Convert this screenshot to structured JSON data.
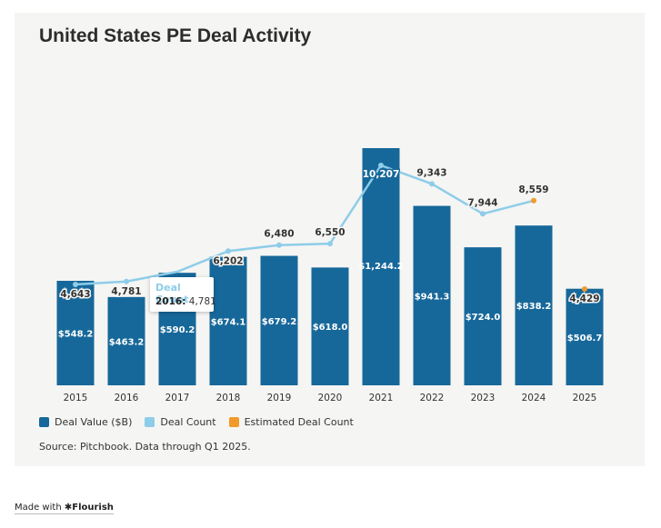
{
  "title": "United States PE Deal Activity",
  "colors": {
    "bar": "#17689a",
    "line": "#8ecde9",
    "estimated": "#f19a2c",
    "panel": "#f5f5f3"
  },
  "legend": {
    "deal_value": "Deal Value ($B)",
    "deal_count": "Deal Count",
    "estimated_count": "Estimated Deal Count"
  },
  "source": "Source: Pitchbook. Data through Q1 2025.",
  "footer": {
    "made_with": "Made with",
    "brand": "Flourish",
    "brand_icon": "asterisk-icon"
  },
  "tooltip": {
    "title": "Deal Count",
    "year": "2016:",
    "value": "4,781"
  },
  "chart_data": {
    "type": "bar",
    "categories": [
      "2015",
      "2016",
      "2017",
      "2018",
      "2019",
      "2020",
      "2021",
      "2022",
      "2023",
      "2024",
      "2025"
    ],
    "series": [
      {
        "name": "Deal Value ($B)",
        "type": "bar",
        "values": [
          548.2,
          463.2,
          590.2,
          674.1,
          679.2,
          618.0,
          1244.2,
          941.3,
          724.0,
          838.2,
          506.7
        ],
        "labels": [
          "$548.2",
          "$463.2",
          "$590.2",
          "$674.1",
          "$679.2",
          "$618.0",
          "$1,244.2",
          "$941.3",
          "$724.0",
          "$838.2",
          "$506.7"
        ]
      },
      {
        "name": "Deal Count",
        "type": "line",
        "values": [
          4643,
          4781,
          null,
          6202,
          6480,
          6550,
          10207,
          9343,
          7944,
          8559,
          4429
        ],
        "labels": [
          "4,643",
          "4,781",
          "",
          "6,202",
          "6,480",
          "6,550",
          "10,207",
          "9,343",
          "7,944",
          "8,559",
          "4,429"
        ]
      },
      {
        "name": "Estimated Deal Count",
        "type": "point",
        "values": [
          null,
          null,
          null,
          null,
          null,
          null,
          null,
          null,
          null,
          8559,
          4429
        ]
      }
    ],
    "bar_ylim": [
      0,
      1244.2
    ],
    "line_ylim": [
      0,
      10207
    ],
    "grid": false,
    "legend_position": "bottom-left"
  }
}
